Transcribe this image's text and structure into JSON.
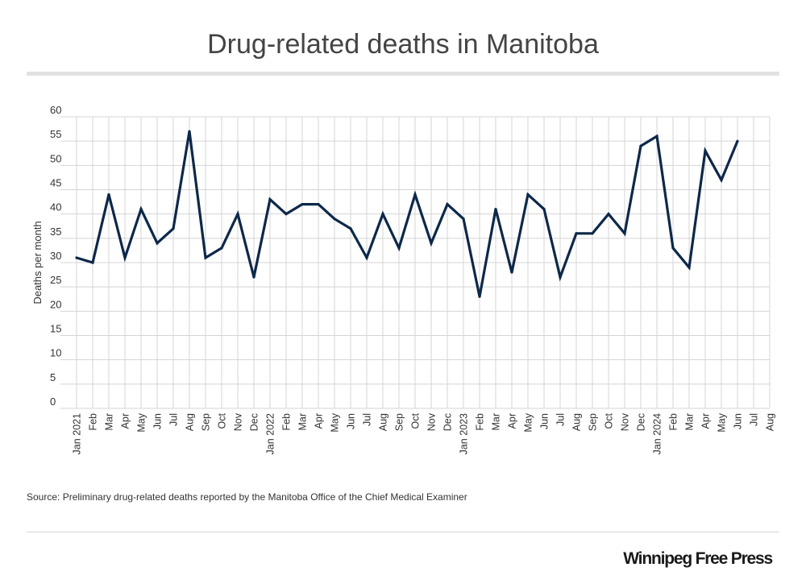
{
  "title": "Drug-related deaths in Manitoba",
  "source": "Source: Preliminary drug-related deaths reported by the Manitoba Office of the Chief Medical Examiner",
  "logo": "Winnipeg Free Press",
  "colors": {
    "line": "#0d2849",
    "grid": "#d4d4d4",
    "text": "#333333"
  },
  "chart_data": {
    "type": "line",
    "title": "Drug-related deaths in Manitoba",
    "ylabel": "Deaths per month",
    "xlabel": "",
    "ylim": [
      0,
      60
    ],
    "yticks": [
      0,
      5,
      10,
      15,
      20,
      25,
      30,
      35,
      40,
      45,
      50,
      55,
      60
    ],
    "grid": true,
    "categories": [
      "Jan 2021",
      "Feb",
      "Mar",
      "Apr",
      "May",
      "Jun",
      "Jul",
      "Aug",
      "Sep",
      "Oct",
      "Nov",
      "Dec",
      "Jan 2022",
      "Feb",
      "Mar",
      "Apr",
      "May",
      "Jun",
      "Jul",
      "Aug",
      "Sep",
      "Oct",
      "Nov",
      "Dec",
      "Jan 2023",
      "Feb",
      "Mar",
      "Apr",
      "May",
      "Jun",
      "Jul",
      "Aug",
      "Sep",
      "Oct",
      "Nov",
      "Dec",
      "Jan 2024",
      "Feb",
      "Mar",
      "Apr",
      "May",
      "Jun",
      "Jul",
      "Aug"
    ],
    "values": [
      31,
      30,
      44,
      31,
      41,
      34,
      37,
      57,
      31,
      33,
      40,
      27,
      43,
      40,
      42,
      42,
      39,
      37,
      31,
      40,
      33,
      44,
      34,
      42,
      39,
      23,
      41,
      28,
      44,
      41,
      27,
      36,
      36,
      40,
      36,
      54,
      56,
      33,
      29,
      53,
      47,
      55,
      null,
      null
    ]
  }
}
